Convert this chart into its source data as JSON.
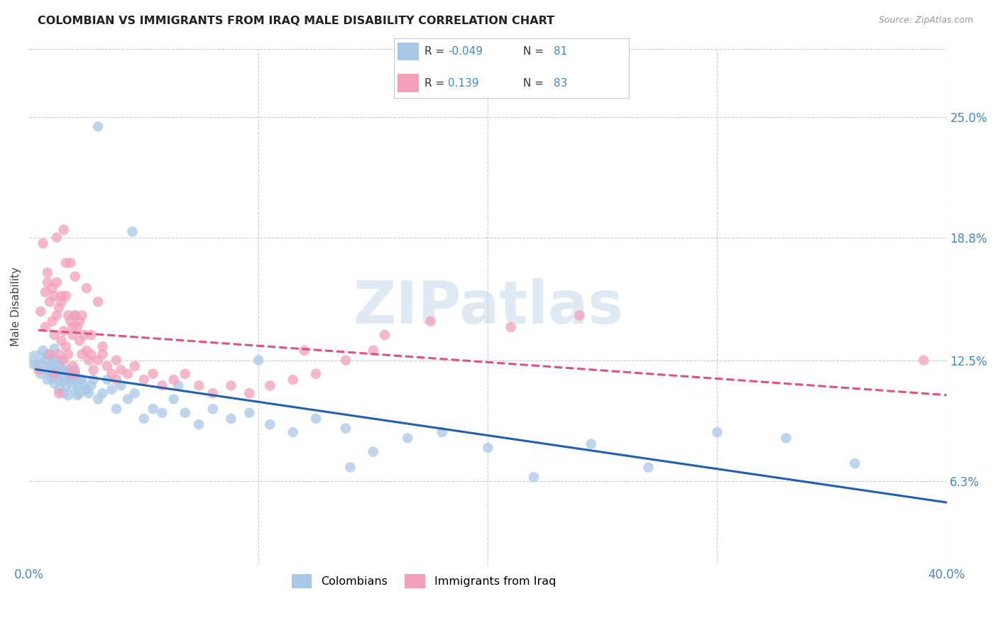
{
  "title": "COLOMBIAN VS IMMIGRANTS FROM IRAQ MALE DISABILITY CORRELATION CHART",
  "source": "Source: ZipAtlas.com",
  "ylabel": "Male Disability",
  "xlim": [
    0.0,
    0.4
  ],
  "ylim": [
    0.02,
    0.285
  ],
  "yticks": [
    0.063,
    0.125,
    0.188,
    0.25
  ],
  "ytick_labels": [
    "6.3%",
    "12.5%",
    "18.8%",
    "25.0%"
  ],
  "xticks": [
    0.0,
    0.1,
    0.2,
    0.3,
    0.4
  ],
  "xtick_labels": [
    "0.0%",
    "",
    "",
    "",
    "40.0%"
  ],
  "watermark": "ZIPatlas",
  "legend_R1": "-0.049",
  "legend_N1": "81",
  "legend_R2": "0.139",
  "legend_N2": "83",
  "color_blue": "#a8c8e8",
  "color_pink": "#f4a0b8",
  "line_blue": "#2060b0",
  "line_pink": "#e05080",
  "tick_color": "#4488cc",
  "colombians_x": [
    0.003,
    0.005,
    0.006,
    0.007,
    0.007,
    0.008,
    0.008,
    0.009,
    0.009,
    0.01,
    0.01,
    0.01,
    0.011,
    0.011,
    0.011,
    0.012,
    0.012,
    0.013,
    0.013,
    0.013,
    0.014,
    0.014,
    0.015,
    0.015,
    0.015,
    0.016,
    0.016,
    0.017,
    0.017,
    0.018,
    0.018,
    0.019,
    0.019,
    0.02,
    0.02,
    0.021,
    0.021,
    0.022,
    0.022,
    0.023,
    0.024,
    0.025,
    0.026,
    0.027,
    0.028,
    0.03,
    0.032,
    0.034,
    0.036,
    0.038,
    0.04,
    0.043,
    0.046,
    0.05,
    0.054,
    0.058,
    0.063,
    0.068,
    0.074,
    0.08,
    0.088,
    0.096,
    0.105,
    0.115,
    0.125,
    0.138,
    0.15,
    0.165,
    0.18,
    0.2,
    0.22,
    0.245,
    0.27,
    0.3,
    0.33,
    0.36,
    0.03,
    0.045,
    0.065,
    0.1,
    0.14
  ],
  "colombians_y": [
    0.123,
    0.118,
    0.13,
    0.125,
    0.12,
    0.115,
    0.128,
    0.122,
    0.119,
    0.124,
    0.121,
    0.116,
    0.126,
    0.113,
    0.131,
    0.12,
    0.118,
    0.115,
    0.122,
    0.11,
    0.125,
    0.118,
    0.114,
    0.12,
    0.108,
    0.116,
    0.112,
    0.12,
    0.107,
    0.115,
    0.118,
    0.111,
    0.116,
    0.12,
    0.148,
    0.112,
    0.107,
    0.115,
    0.108,
    0.115,
    0.112,
    0.11,
    0.108,
    0.112,
    0.115,
    0.105,
    0.108,
    0.115,
    0.11,
    0.1,
    0.112,
    0.105,
    0.108,
    0.095,
    0.1,
    0.098,
    0.105,
    0.098,
    0.092,
    0.1,
    0.095,
    0.098,
    0.092,
    0.088,
    0.095,
    0.09,
    0.078,
    0.085,
    0.088,
    0.08,
    0.065,
    0.082,
    0.07,
    0.088,
    0.085,
    0.072,
    0.245,
    0.191,
    0.112,
    0.125,
    0.07
  ],
  "iraq_x": [
    0.004,
    0.005,
    0.006,
    0.007,
    0.007,
    0.008,
    0.008,
    0.009,
    0.01,
    0.01,
    0.011,
    0.011,
    0.012,
    0.012,
    0.013,
    0.013,
    0.014,
    0.014,
    0.015,
    0.015,
    0.016,
    0.016,
    0.017,
    0.017,
    0.018,
    0.018,
    0.019,
    0.019,
    0.02,
    0.02,
    0.021,
    0.022,
    0.023,
    0.024,
    0.025,
    0.026,
    0.027,
    0.028,
    0.03,
    0.032,
    0.034,
    0.036,
    0.038,
    0.04,
    0.043,
    0.046,
    0.05,
    0.054,
    0.058,
    0.063,
    0.068,
    0.074,
    0.08,
    0.088,
    0.096,
    0.105,
    0.115,
    0.125,
    0.138,
    0.15,
    0.012,
    0.015,
    0.018,
    0.02,
    0.025,
    0.03,
    0.022,
    0.016,
    0.014,
    0.019,
    0.023,
    0.027,
    0.032,
    0.038,
    0.12,
    0.155,
    0.175,
    0.21,
    0.24,
    0.009,
    0.011,
    0.013,
    0.39
  ],
  "iraq_y": [
    0.12,
    0.15,
    0.185,
    0.16,
    0.142,
    0.17,
    0.165,
    0.155,
    0.162,
    0.145,
    0.158,
    0.138,
    0.165,
    0.148,
    0.152,
    0.128,
    0.155,
    0.135,
    0.14,
    0.125,
    0.158,
    0.132,
    0.148,
    0.128,
    0.145,
    0.118,
    0.138,
    0.122,
    0.148,
    0.118,
    0.142,
    0.135,
    0.128,
    0.138,
    0.13,
    0.125,
    0.128,
    0.12,
    0.125,
    0.128,
    0.122,
    0.118,
    0.115,
    0.12,
    0.118,
    0.122,
    0.115,
    0.118,
    0.112,
    0.115,
    0.118,
    0.112,
    0.108,
    0.112,
    0.108,
    0.112,
    0.115,
    0.118,
    0.125,
    0.13,
    0.188,
    0.192,
    0.175,
    0.168,
    0.162,
    0.155,
    0.145,
    0.175,
    0.158,
    0.142,
    0.148,
    0.138,
    0.132,
    0.125,
    0.13,
    0.138,
    0.145,
    0.142,
    0.148,
    0.128,
    0.118,
    0.108,
    0.125
  ]
}
